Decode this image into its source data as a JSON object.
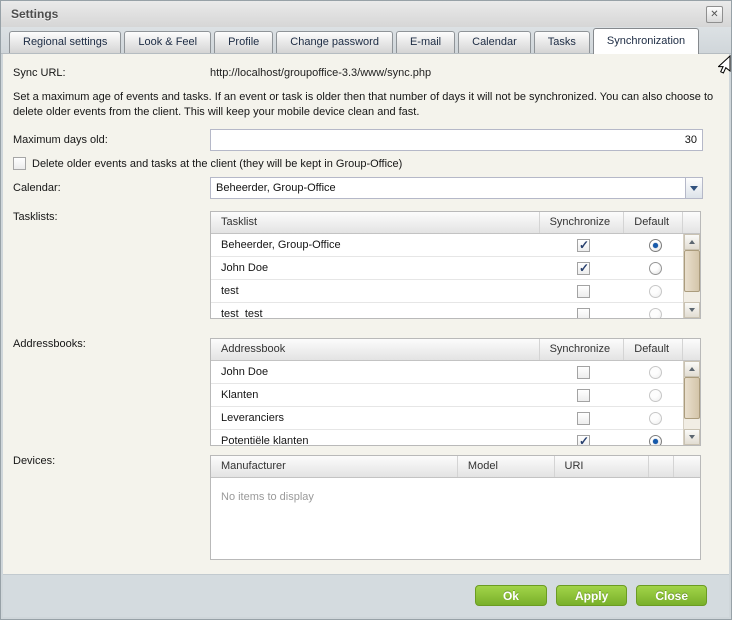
{
  "window": {
    "title": "Settings"
  },
  "icons": {
    "close": "✕"
  },
  "tabs": [
    {
      "label": "Regional settings",
      "active": false
    },
    {
      "label": "Look & Feel",
      "active": false
    },
    {
      "label": "Profile",
      "active": false
    },
    {
      "label": "Change password",
      "active": false
    },
    {
      "label": "E-mail",
      "active": false
    },
    {
      "label": "Calendar",
      "active": false
    },
    {
      "label": "Tasks",
      "active": false
    },
    {
      "label": "Synchronization",
      "active": true
    }
  ],
  "sync_url": {
    "label": "Sync URL:",
    "value": "http://localhost/groupoffice-3.3/www/sync.php"
  },
  "description": "Set a maximum age of events and tasks. If an event or task is older then that number of days it will not be synchronized. You can also choose to delete older events from the client. This will keep your mobile device clean and fast.",
  "max_days": {
    "label": "Maximum days old:",
    "value": "30"
  },
  "delete_older": {
    "label": "Delete older events and tasks at the client (they will be kept in Group-Office)",
    "checked": false
  },
  "calendar": {
    "label": "Calendar:",
    "value": "Beheerder, Group-Office"
  },
  "tasklists": {
    "label": "Tasklists:",
    "columns": [
      "Tasklist",
      "Synchronize",
      "Default"
    ],
    "rows": [
      {
        "name": "Beheerder, Group-Office",
        "synchronize": true,
        "default": true
      },
      {
        "name": "John Doe",
        "synchronize": true,
        "default": false
      },
      {
        "name": "test",
        "synchronize": false,
        "default": false
      },
      {
        "name": "test_test",
        "synchronize": false,
        "default": false
      }
    ]
  },
  "addressbooks": {
    "label": "Addressbooks:",
    "columns": [
      "Addressbook",
      "Synchronize",
      "Default"
    ],
    "rows": [
      {
        "name": "John Doe",
        "synchronize": false,
        "default": false
      },
      {
        "name": "Klanten",
        "synchronize": false,
        "default": false
      },
      {
        "name": "Leveranciers",
        "synchronize": false,
        "default": false
      },
      {
        "name": "Potentiële klanten",
        "synchronize": true,
        "default": true
      }
    ]
  },
  "devices": {
    "label": "Devices:",
    "columns": [
      "Manufacturer",
      "Model",
      "URI"
    ],
    "empty_text": "No items to display"
  },
  "footer": {
    "buttons": [
      {
        "label": "Ok"
      },
      {
        "label": "Apply"
      },
      {
        "label": "Close"
      }
    ]
  },
  "colors": {
    "button_green": "#8cc63f",
    "content_bg": "#f4f3ec",
    "footer_bg": "#d4dbdf",
    "radio_selected": "#1559ab",
    "check_mark": "#28406e"
  }
}
